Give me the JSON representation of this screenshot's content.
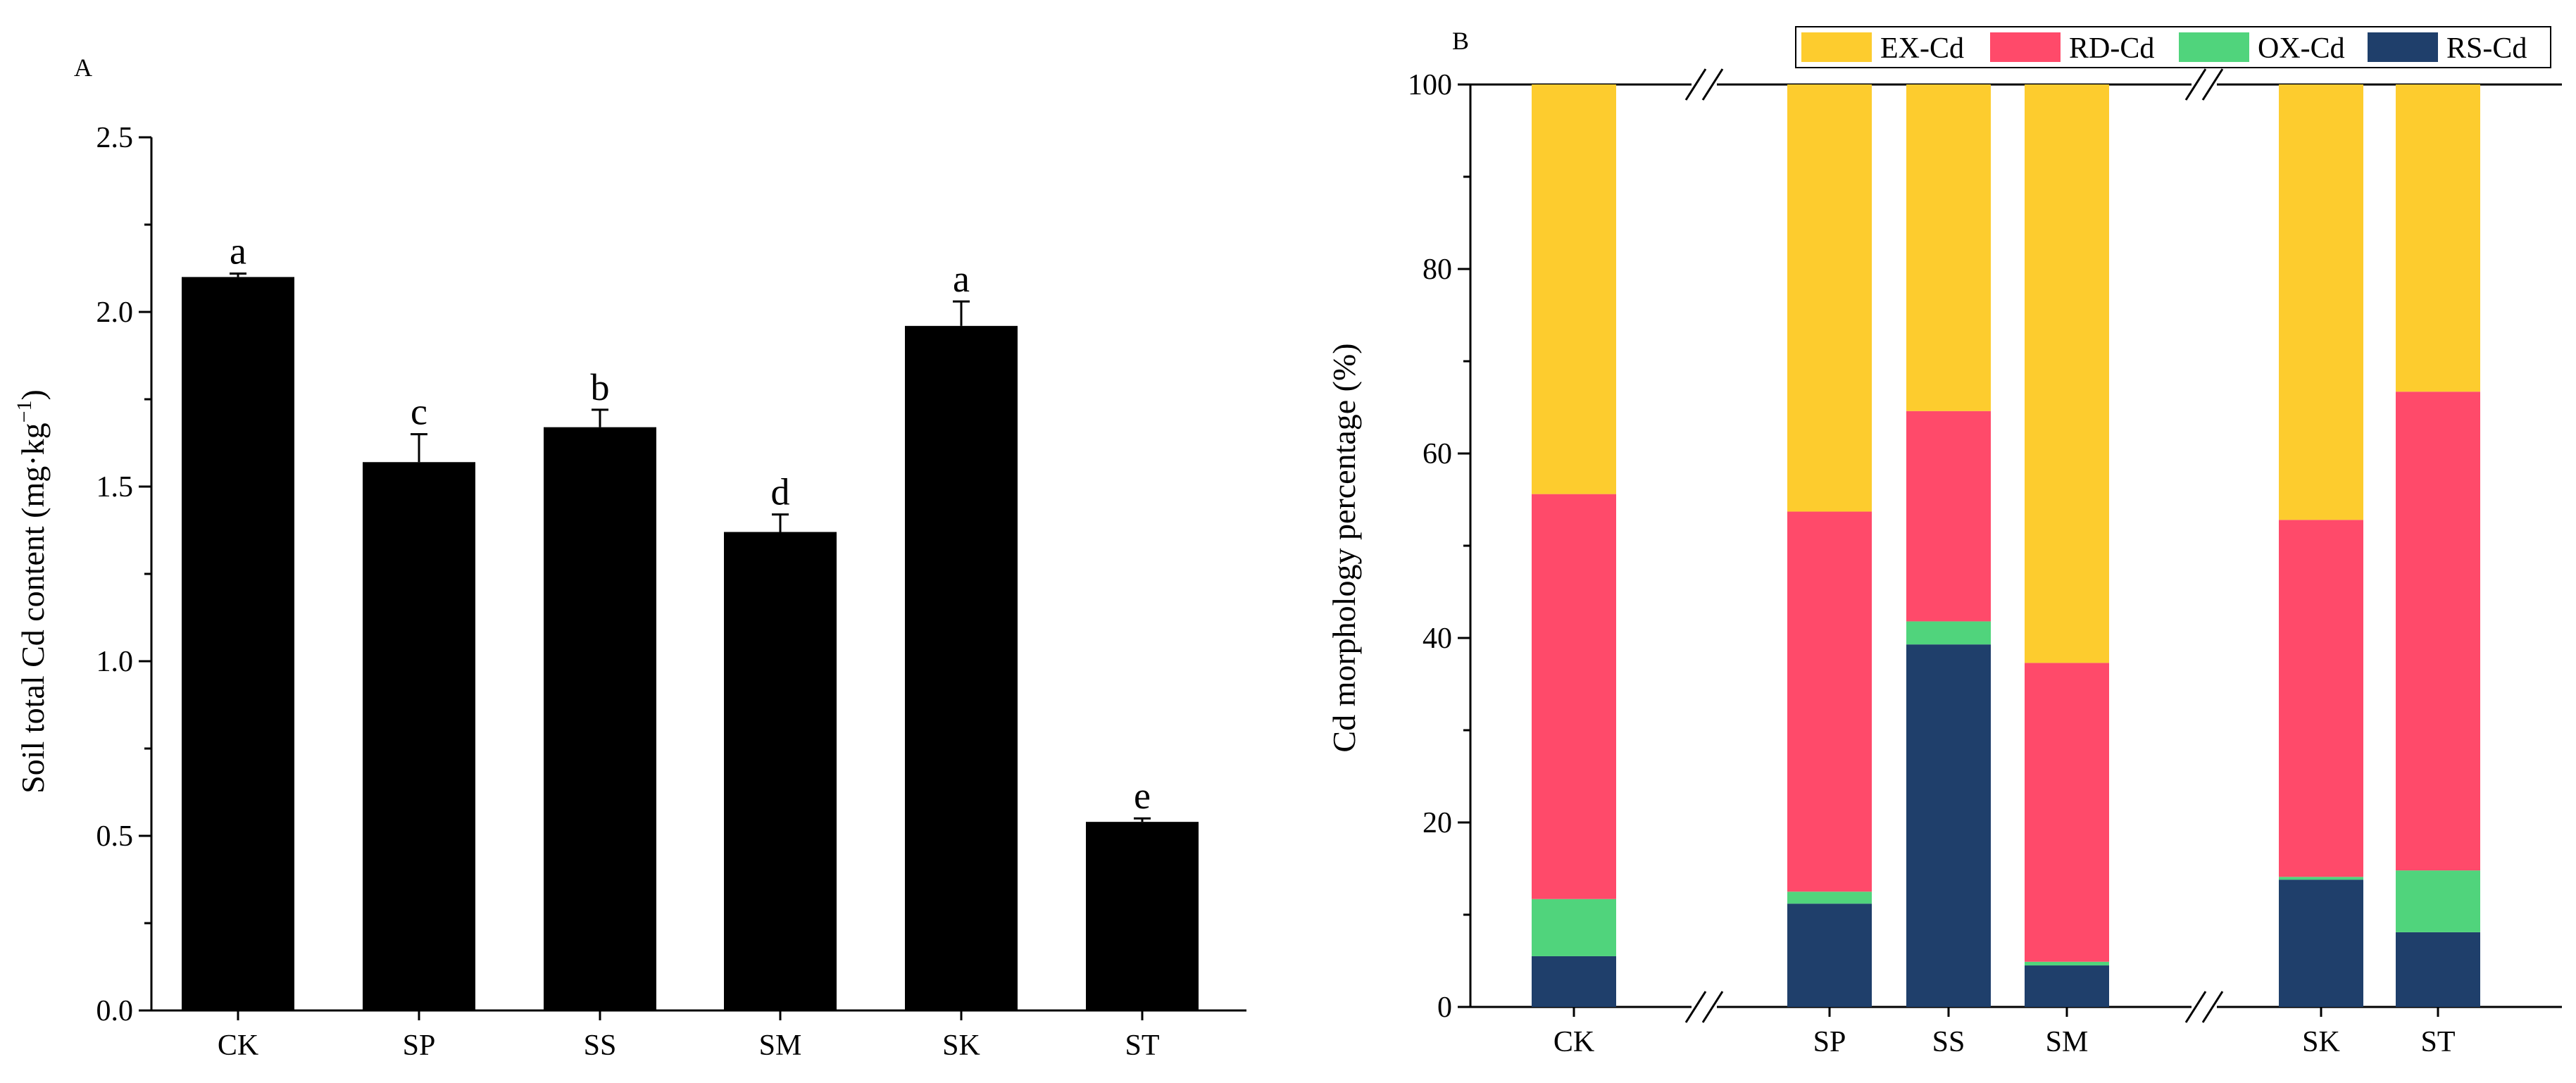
{
  "chart_data": [
    {
      "type": "bar",
      "panel_label": "A",
      "title": "",
      "xlabel": "",
      "ylabel": "Soil total Cd content (mg·kg",
      "ylabel_superscript": "−1",
      "ylabel_close": ")",
      "categories": [
        "CK",
        "SP",
        "SS",
        "SM",
        "SK",
        "ST"
      ],
      "values": [
        2.1,
        1.57,
        1.67,
        1.37,
        1.96,
        0.54
      ],
      "errors": [
        0.01,
        0.08,
        0.05,
        0.05,
        0.07,
        0.01
      ],
      "significance": [
        "a",
        "c",
        "b",
        "d",
        "a",
        "e"
      ],
      "ylim": [
        0,
        2.5
      ],
      "yticks": [
        "0.0",
        "0.5",
        "1.0",
        "1.5",
        "2.0",
        "2.5"
      ],
      "bar_color": "#000000"
    },
    {
      "type": "bar",
      "stacked": true,
      "panel_label": "B",
      "title": "",
      "xlabel": "",
      "ylabel": "Cd morphology percentage (%)",
      "categories": [
        "CK",
        "SP",
        "SS",
        "SM",
        "SK",
        "ST"
      ],
      "groups": [
        [
          "CK"
        ],
        [
          "SP",
          "SS",
          "SM"
        ],
        [
          "SK",
          "ST"
        ]
      ],
      "axis_break_marks": [
        "//",
        "//"
      ],
      "ylim": [
        0,
        100
      ],
      "yticks": [
        "0",
        "20",
        "40",
        "60",
        "80",
        "100"
      ],
      "legend_position": "top",
      "series": [
        {
          "name": "RS-Cd",
          "color": "#1f3f6b",
          "values": [
            5.5,
            11.2,
            39.3,
            4.5,
            13.8,
            8.1
          ]
        },
        {
          "name": "OX-Cd",
          "color": "#50d47c",
          "values": [
            6.2,
            1.3,
            2.5,
            0.4,
            0.3,
            6.7
          ]
        },
        {
          "name": "RD-Cd",
          "color": "#ff4a6a",
          "values": [
            43.9,
            41.2,
            22.8,
            32.4,
            38.7,
            51.9
          ]
        },
        {
          "name": "EX-Cd",
          "color": "#fdcc2e",
          "values": [
            44.4,
            46.3,
            35.4,
            62.7,
            47.2,
            33.3
          ]
        }
      ],
      "legend_order": [
        "EX-Cd",
        "RD-Cd",
        "OX-Cd",
        "RS-Cd"
      ]
    }
  ]
}
